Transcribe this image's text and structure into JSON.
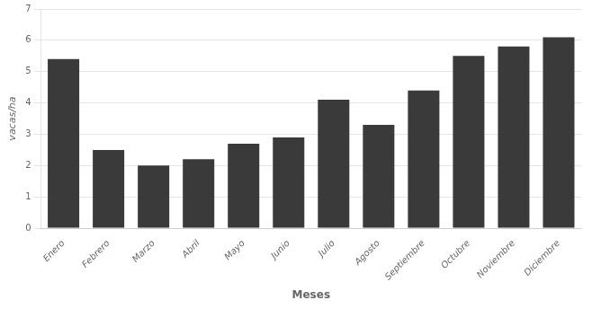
{
  "chart_data": {
    "type": "bar",
    "categories": [
      "Enero",
      "Febrero",
      "Marzo",
      "Abril",
      "Mayo",
      "Junio",
      "Julio",
      "Agosto",
      "Septiembre",
      "Octubre",
      "Noviembre",
      "Diciembre"
    ],
    "values": [
      5.4,
      2.5,
      2.0,
      2.2,
      2.7,
      2.9,
      4.1,
      3.3,
      4.4,
      5.5,
      5.8,
      6.1
    ],
    "color": "#3a3a3a",
    "xlabel": "Meses",
    "ylabel": "vacas/ha",
    "ylim": [
      0,
      7
    ],
    "yticks": [
      0,
      1,
      2,
      3,
      4,
      5,
      6,
      7
    ],
    "grid": true
  }
}
